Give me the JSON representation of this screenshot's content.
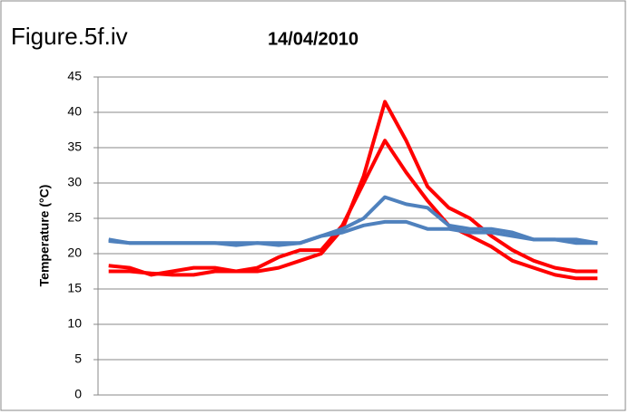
{
  "chart_data": {
    "type": "line",
    "annotation": "Figure.5f.iv",
    "title": "14/04/2010",
    "y_label": "Temperature (°C)",
    "categories": [
      null,
      null,
      null,
      null,
      null,
      null,
      null,
      null,
      null,
      null,
      null,
      null,
      null,
      null,
      null,
      null,
      null,
      null,
      null,
      null,
      null,
      null,
      null,
      null
    ],
    "series": [
      {
        "color": "#ff0000",
        "values": [
          17.5,
          17.5,
          17.2,
          17.0,
          17.0,
          17.5,
          17.5,
          17.5,
          18,
          19,
          20,
          23.5,
          31,
          41.5,
          36,
          29.5,
          26.5,
          25,
          22.5,
          20.5,
          19,
          18,
          17.5,
          17.5
        ]
      },
      {
        "color": "#ff0000",
        "values": [
          18.3,
          18,
          17,
          17.5,
          18,
          18,
          17.5,
          18,
          19.5,
          20.5,
          20.5,
          24,
          30,
          36,
          31.5,
          27.5,
          24,
          22.5,
          21,
          19,
          18,
          17,
          16.5,
          16.5
        ]
      },
      {
        "color": "#4f81bd",
        "values": [
          22,
          21.5,
          21.5,
          21.5,
          21.5,
          21.5,
          21.5,
          21.5,
          21.5,
          21.5,
          22.5,
          23.5,
          25,
          28,
          27,
          26.5,
          24,
          23.5,
          23.5,
          23,
          22,
          22,
          22,
          21.5
        ]
      },
      {
        "color": "#4f81bd",
        "values": [
          21.8,
          21.5,
          21.5,
          21.5,
          21.5,
          21.5,
          21.2,
          21.5,
          21.2,
          21.5,
          22.5,
          23,
          24,
          24.5,
          24.5,
          23.5,
          23.5,
          23,
          23,
          22.5,
          22,
          22,
          21.5,
          21.5
        ]
      }
    ],
    "ylim": [
      0,
      45
    ],
    "yticks": [
      0,
      5,
      10,
      15,
      20,
      25,
      30,
      35,
      40,
      45
    ],
    "grid": true
  }
}
